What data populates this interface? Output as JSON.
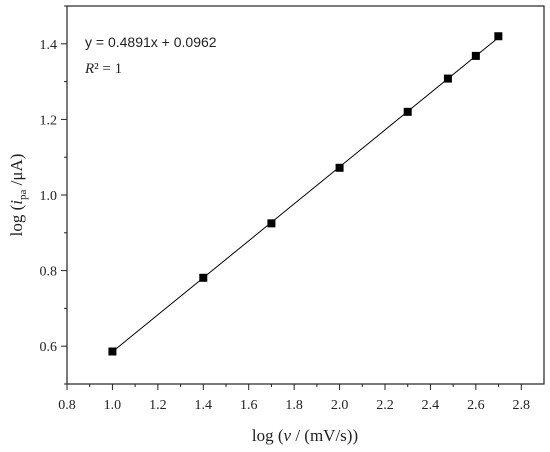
{
  "chart_data": {
    "type": "scatter",
    "x": [
      1.0,
      1.4,
      1.7,
      2.0,
      2.3,
      2.477,
      2.6,
      2.699
    ],
    "y": [
      0.586,
      0.781,
      0.925,
      1.072,
      1.22,
      1.308,
      1.368,
      1.42
    ],
    "xlim": [
      0.8,
      2.9
    ],
    "ylim": [
      0.5,
      1.5
    ],
    "x_ticks": [
      "0.8",
      "1.0",
      "1.2",
      "1.4",
      "1.6",
      "1.8",
      "2.0",
      "2.2",
      "2.4",
      "2.6",
      "2.8"
    ],
    "y_ticks": [
      "0.6",
      "0.8",
      "1.0",
      "1.2",
      "1.4"
    ],
    "xlabel_prefix": "log (",
    "xlabel_var": "ν",
    "xlabel_suffix": " / (mV/s))",
    "ylabel_prefix": "log (",
    "ylabel_var": "i",
    "ylabel_sub": "pa",
    "ylabel_suffix": " /μA)",
    "fit": {
      "slope": 0.4891,
      "intercept": 0.0962
    },
    "equation": "y = 0.4891x + 0.0962",
    "r2_label": "R",
    "r2_value": "² = 1",
    "marker": "square",
    "marker_color": "#000000",
    "line_color": "#000000",
    "grid": false,
    "legend": "none"
  }
}
